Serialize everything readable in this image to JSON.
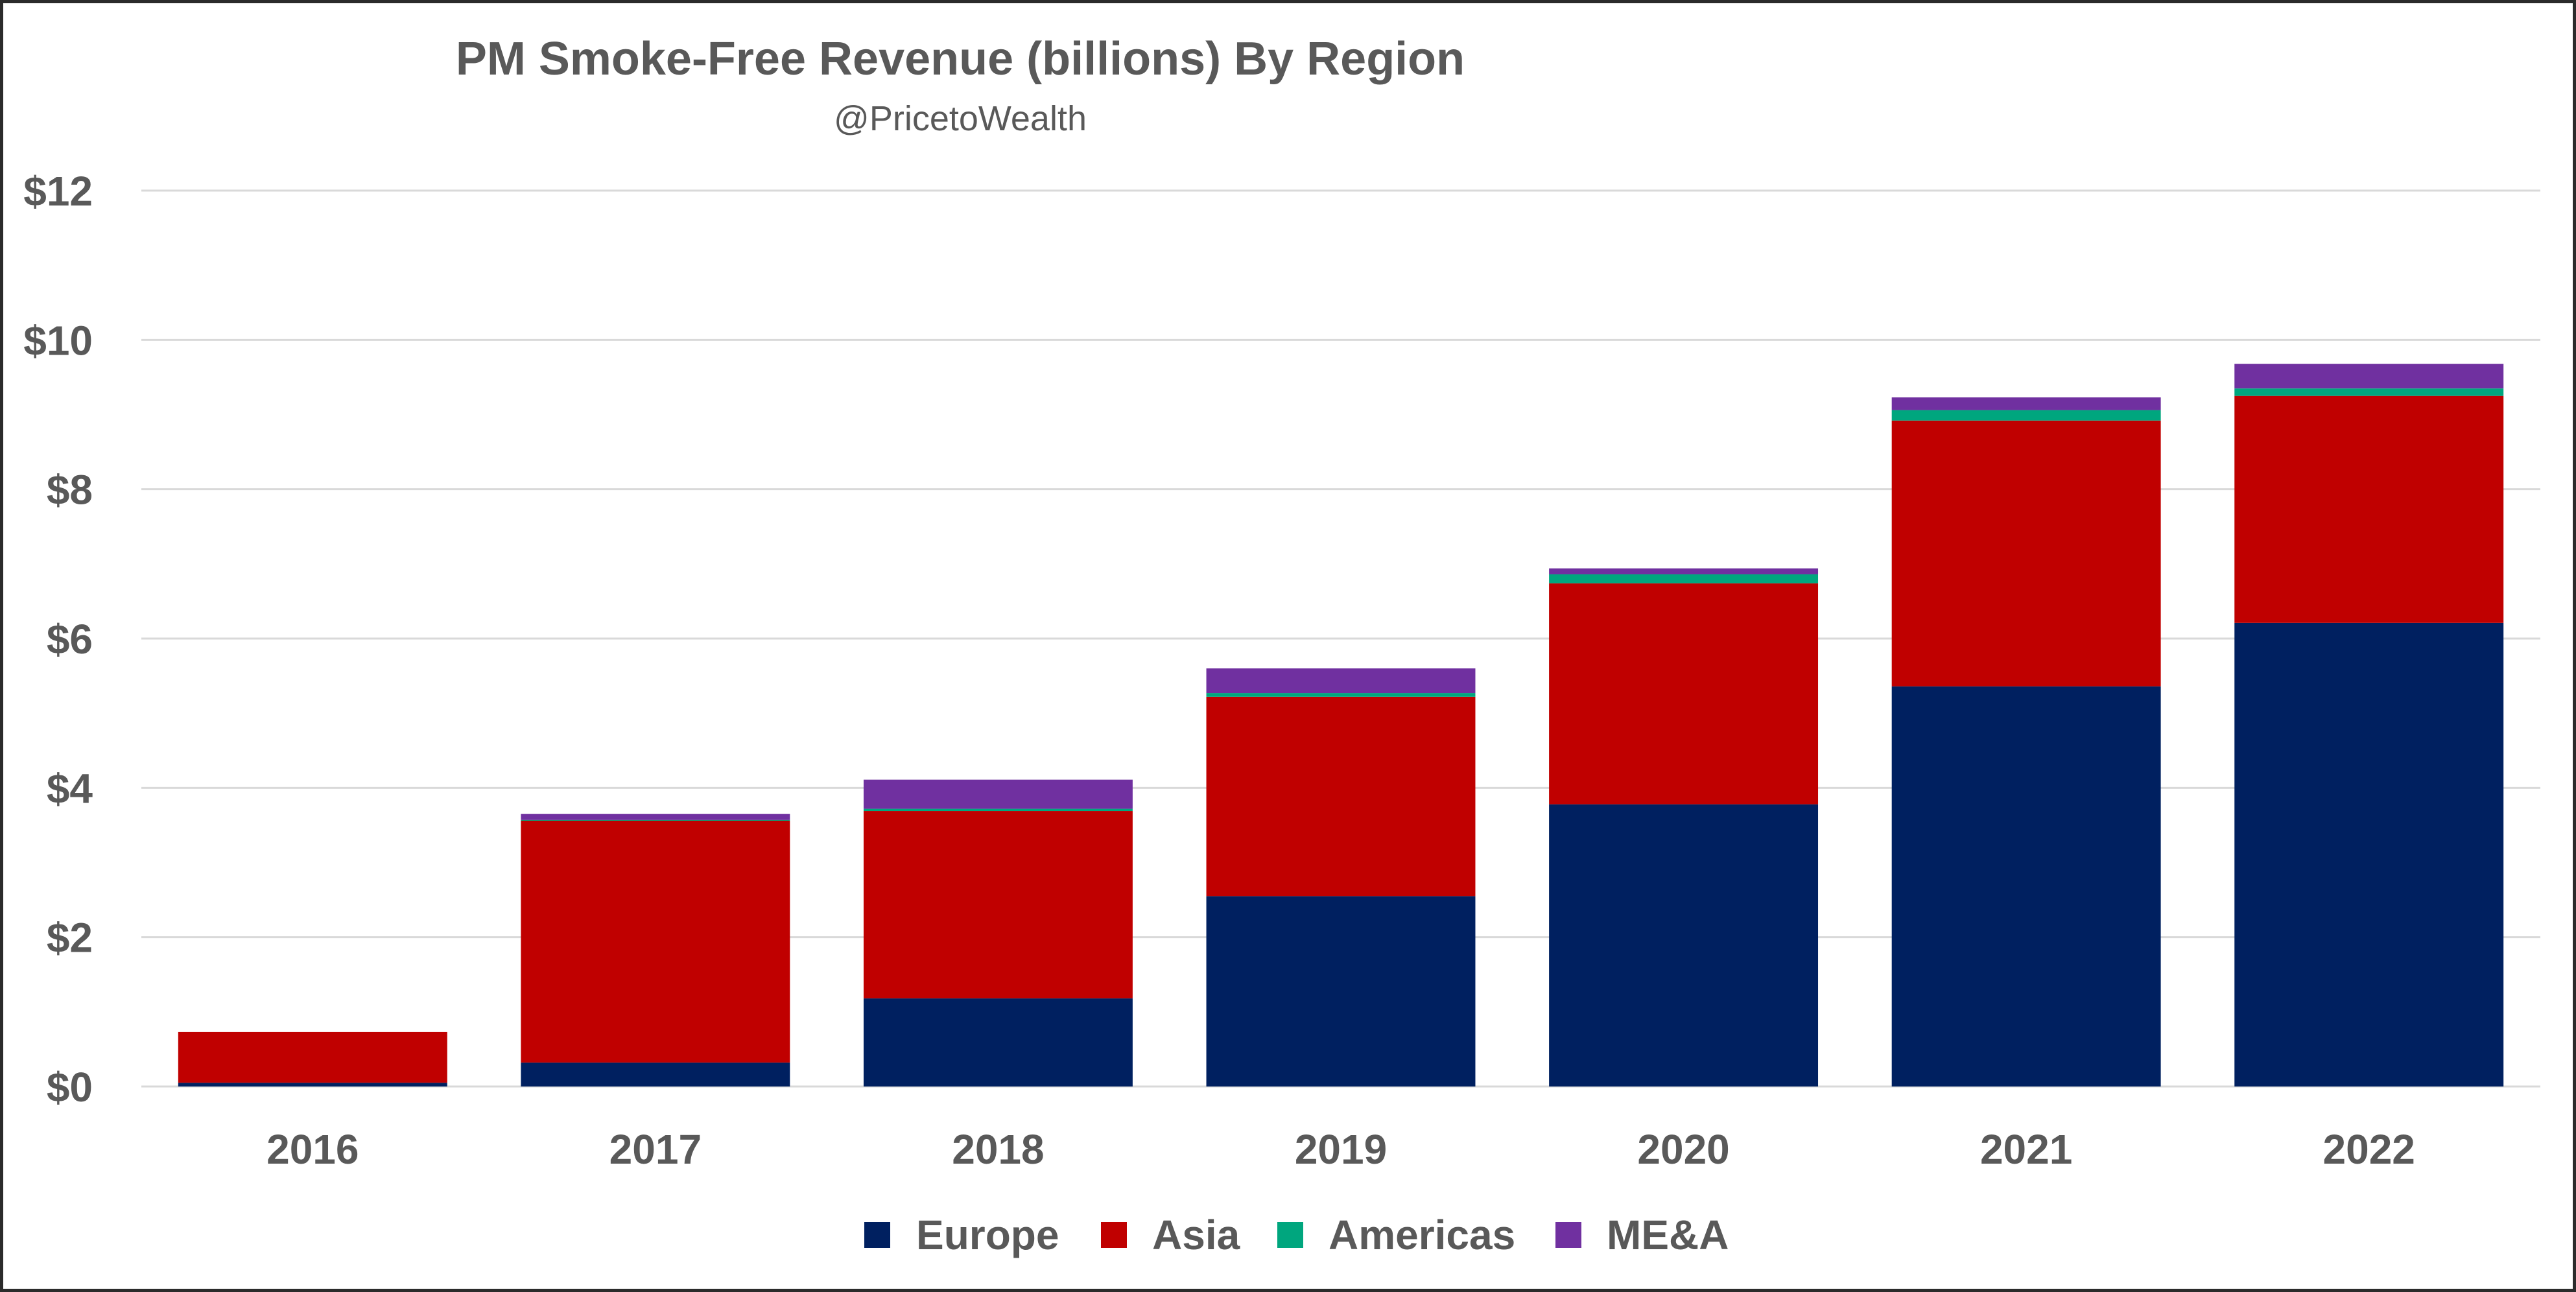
{
  "chart_data": {
    "type": "bar",
    "stacked": true,
    "title": "PM Smoke-Free Revenue (billions) By Region",
    "subtitle": "@PricetoWealth",
    "xlabel": "",
    "ylabel": "",
    "categories": [
      "2016",
      "2017",
      "2018",
      "2019",
      "2020",
      "2021",
      "2022"
    ],
    "ylim": [
      0,
      12
    ],
    "yticks": [
      0,
      2,
      4,
      6,
      8,
      10,
      12
    ],
    "ytick_labels": [
      "$0",
      "$2",
      "$4",
      "$6",
      "$8",
      "$10",
      "$12"
    ],
    "grid": true,
    "legend_position": "bottom",
    "series": [
      {
        "name": "Europe",
        "color": "#002060",
        "values": [
          0.05,
          0.32,
          1.18,
          2.55,
          3.78,
          5.36,
          6.21
        ]
      },
      {
        "name": "Asia",
        "color": "#C00000",
        "values": [
          0.68,
          3.24,
          2.51,
          2.67,
          2.96,
          3.56,
          3.04
        ]
      },
      {
        "name": "Americas",
        "color": "#00A67E",
        "values": [
          0.0,
          0.01,
          0.03,
          0.05,
          0.12,
          0.14,
          0.1
        ]
      },
      {
        "name": "ME&A",
        "color": "#7030A0",
        "values": [
          0.0,
          0.08,
          0.39,
          0.33,
          0.08,
          0.17,
          0.33
        ]
      }
    ]
  }
}
